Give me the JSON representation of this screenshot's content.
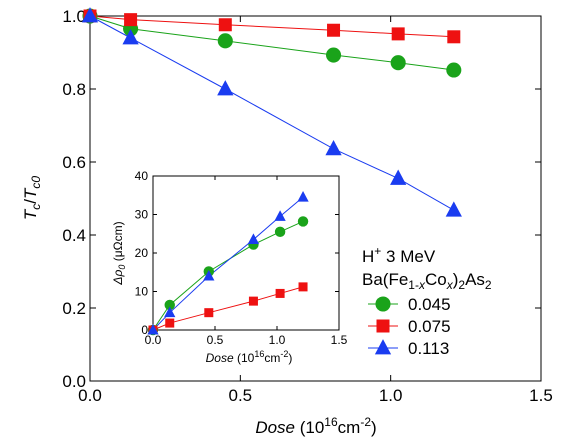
{
  "chart_data": [
    {
      "type": "line",
      "role": "main",
      "xlabel": {
        "var": "Dose",
        "unit_pre": " (10",
        "unit_sup": "16",
        "unit_mid": "cm",
        "unit_sup2": "-2",
        "unit_post": ")"
      },
      "ylabel": {
        "t1": "T",
        "s1": "c",
        "sep": "/",
        "t2": "T",
        "s2": "c0"
      },
      "xlim": [
        0,
        1.5
      ],
      "ylim": [
        0,
        1.0
      ],
      "xticks": [
        0.0,
        0.5,
        1.0,
        1.5
      ],
      "xtick_labels": [
        "0.0",
        "0.5",
        "1.0",
        "1.5"
      ],
      "yticks": [
        0.0,
        0.2,
        0.4,
        0.6,
        0.8,
        1.0
      ],
      "ytick_labels": [
        "0.0",
        "0.2",
        "0.4",
        "0.6",
        "0.8",
        "1.0"
      ],
      "grid": false,
      "series": [
        {
          "name": "0.045",
          "color": "#1aa31a",
          "marker": "circle",
          "x": [
            0,
            0.135,
            0.45,
            0.81,
            1.025,
            1.21
          ],
          "y": [
            1.0,
            0.965,
            0.932,
            0.893,
            0.872,
            0.852
          ]
        },
        {
          "name": "0.075",
          "color": "#ee1111",
          "marker": "square",
          "x": [
            0,
            0.135,
            0.45,
            0.81,
            1.025,
            1.21
          ],
          "y": [
            1.0,
            0.99,
            0.976,
            0.961,
            0.951,
            0.943
          ]
        },
        {
          "name": "0.113",
          "color": "#1a3cf0",
          "marker": "triangle",
          "x": [
            0,
            0.135,
            0.45,
            0.81,
            1.025,
            1.21
          ],
          "y": [
            1.0,
            0.94,
            0.8,
            0.636,
            0.555,
            0.468
          ]
        }
      ]
    },
    {
      "type": "line",
      "role": "inset",
      "xlabel": {
        "var": "Dose",
        "unit_pre": " (10",
        "unit_sup": "16",
        "unit_mid": "cm",
        "unit_sup2": "-2",
        "unit_post": ")"
      },
      "ylabel": {
        "var": "Δρ",
        "sub": "0",
        "unit": " (μΩcm)"
      },
      "xlim": [
        0,
        1.5
      ],
      "ylim": [
        0,
        40
      ],
      "xticks": [
        0.0,
        0.5,
        1.0,
        1.5
      ],
      "xtick_labels": [
        "0.0",
        "0.5",
        "1.0",
        "1.5"
      ],
      "yticks": [
        0,
        10,
        20,
        30,
        40
      ],
      "ytick_labels": [
        "0",
        "10",
        "20",
        "30",
        "40"
      ],
      "series": [
        {
          "name": "0.045",
          "color": "#1aa31a",
          "marker": "circle",
          "x": [
            0,
            0.135,
            0.45,
            0.81,
            1.025,
            1.21
          ],
          "y": [
            0,
            6.5,
            15.2,
            22.2,
            25.5,
            28.2
          ]
        },
        {
          "name": "0.075",
          "color": "#ee1111",
          "marker": "square",
          "x": [
            0,
            0.135,
            0.45,
            0.81,
            1.025,
            1.21
          ],
          "y": [
            0,
            1.8,
            4.5,
            7.5,
            9.5,
            11.2
          ]
        },
        {
          "name": "0.113",
          "color": "#1a3cf0",
          "marker": "triangle",
          "x": [
            0,
            0.135,
            0.45,
            0.81,
            1.025,
            1.21
          ],
          "y": [
            0,
            4.5,
            14.0,
            23.5,
            29.5,
            34.5
          ]
        }
      ]
    }
  ],
  "legend": {
    "placement": "lower-right",
    "title_line1_pre": "H",
    "title_line1_sup": "+",
    "title_line1_post": " 3 MeV",
    "title_line2": {
      "a": "Ba(Fe",
      "b": "1-",
      "c": "x",
      "d": "Co",
      "e": "x",
      "f": ")",
      "g": "2",
      "h": "As",
      "i": "2"
    }
  }
}
